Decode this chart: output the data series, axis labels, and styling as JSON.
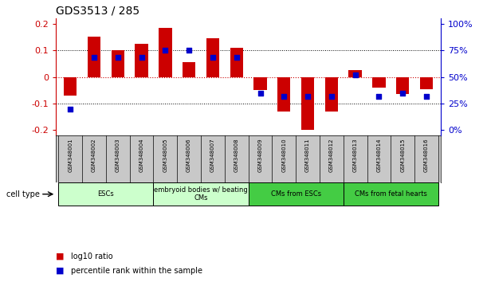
{
  "title": "GDS3513 / 285",
  "samples": [
    "GSM348001",
    "GSM348002",
    "GSM348003",
    "GSM348004",
    "GSM348005",
    "GSM348006",
    "GSM348007",
    "GSM348008",
    "GSM348009",
    "GSM348010",
    "GSM348011",
    "GSM348012",
    "GSM348013",
    "GSM348014",
    "GSM348015",
    "GSM348016"
  ],
  "log10_ratio": [
    -0.07,
    0.15,
    0.1,
    0.125,
    0.185,
    0.055,
    0.145,
    0.11,
    -0.05,
    -0.13,
    -0.2,
    -0.13,
    0.025,
    -0.04,
    -0.065,
    -0.045
  ],
  "percentile_rank": [
    20,
    68,
    68,
    68,
    75,
    75,
    68,
    68,
    35,
    32,
    32,
    32,
    52,
    32,
    35,
    32
  ],
  "cell_types": [
    {
      "label": "ESCs",
      "start": 0,
      "end": 4,
      "color": "#ccffcc"
    },
    {
      "label": "embryoid bodies w/ beating\nCMs",
      "start": 4,
      "end": 8,
      "color": "#ccffcc"
    },
    {
      "label": "CMs from ESCs",
      "start": 8,
      "end": 12,
      "color": "#44cc44"
    },
    {
      "label": "CMs from fetal hearts",
      "start": 12,
      "end": 16,
      "color": "#44cc44"
    }
  ],
  "ylim": [
    -0.22,
    0.22
  ],
  "yticks_left": [
    -0.2,
    -0.1,
    0.0,
    0.1,
    0.2
  ],
  "yticks_right": [
    0,
    25,
    50,
    75,
    100
  ],
  "bar_color_red": "#cc0000",
  "bar_color_blue": "#0000cc",
  "tick_color_red": "#cc0000",
  "tick_color_blue": "#0000cc",
  "bar_width": 0.55,
  "dot_size": 18,
  "background_color": "#ffffff",
  "sample_bg_color": "#c8c8c8",
  "legend_red_label": "log10 ratio",
  "legend_blue_label": "percentile rank within the sample"
}
